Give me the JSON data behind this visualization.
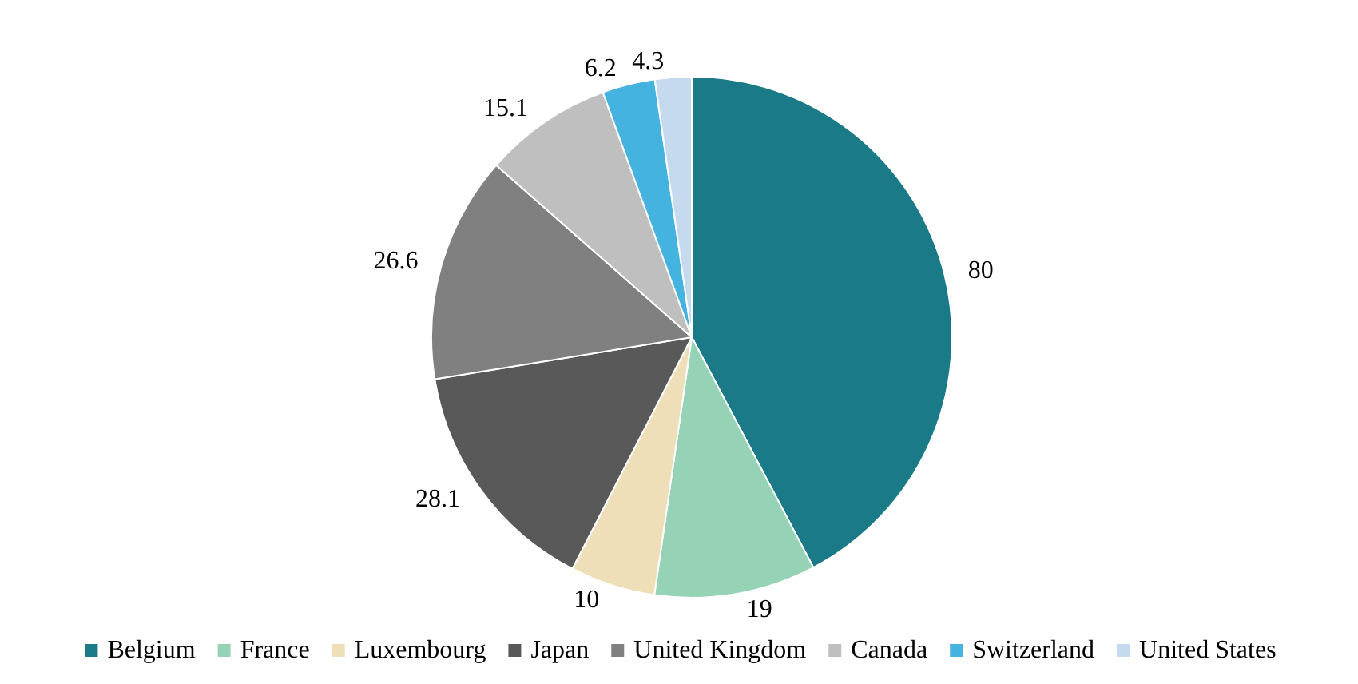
{
  "chart_data": {
    "type": "pie",
    "categories": [
      "Belgium",
      "France",
      "Luxembourg",
      "Japan",
      "United Kingdom",
      "Canada",
      "Switzerland",
      "United States"
    ],
    "values": [
      80,
      19,
      10,
      28.1,
      26.6,
      15.1,
      6.2,
      4.3
    ],
    "colors": [
      "#1a7a87",
      "#96d2b5",
      "#efdfb8",
      "#595959",
      "#808080",
      "#bfbfbf",
      "#45b3e0",
      "#c5d9ef"
    ],
    "data_labels": true,
    "legend": "bottom"
  }
}
